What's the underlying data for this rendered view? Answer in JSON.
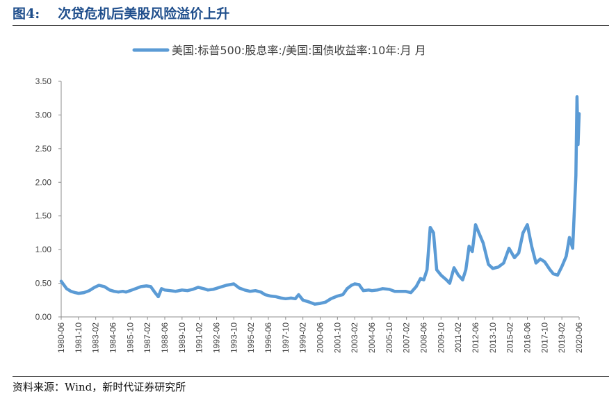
{
  "header": {
    "figure_number": "图4:",
    "title": "次贷危机后美股风险溢价上升"
  },
  "footer": {
    "source": "资料来源：Wind，新时代证券研究所"
  },
  "chart_data": {
    "type": "line",
    "title": "",
    "xlabel": "",
    "ylabel": "",
    "legend": "top-center",
    "grid": false,
    "ylim": [
      0,
      3.5
    ],
    "yticks": [
      "0.00",
      "0.50",
      "1.00",
      "1.50",
      "2.00",
      "2.50",
      "3.00",
      "3.50"
    ],
    "xticks": [
      "1980-06",
      "1981-10",
      "1983-02",
      "1984-06",
      "1985-10",
      "1987-02",
      "1988-06",
      "1989-10",
      "1991-02",
      "1992-06",
      "1993-10",
      "1995-02",
      "1996-06",
      "1997-10",
      "1999-02",
      "2000-06",
      "2001-10",
      "2003-02",
      "2004-06",
      "2005-10",
      "2007-02",
      "2008-06",
      "2009-10",
      "2011-02",
      "2012-06",
      "2013-10",
      "2015-02",
      "2016-06",
      "2017-10",
      "2019-02",
      "2020-06"
    ],
    "x_start": "1980-06",
    "x_end": "2020-06",
    "series": [
      {
        "name": "美国:标普500:股息率:/美国:国债收益率:10年:月 月",
        "color": "#5b9bd5",
        "points": [
          [
            "1980-06",
            0.53
          ],
          [
            "1980-11",
            0.42
          ],
          [
            "1981-03",
            0.38
          ],
          [
            "1981-07",
            0.36
          ],
          [
            "1981-10",
            0.35
          ],
          [
            "1982-03",
            0.36
          ],
          [
            "1982-08",
            0.39
          ],
          [
            "1983-01",
            0.44
          ],
          [
            "1983-05",
            0.47
          ],
          [
            "1983-10",
            0.45
          ],
          [
            "1984-03",
            0.4
          ],
          [
            "1984-07",
            0.38
          ],
          [
            "1984-11",
            0.37
          ],
          [
            "1985-03",
            0.38
          ],
          [
            "1985-06",
            0.37
          ],
          [
            "1985-10",
            0.39
          ],
          [
            "1986-03",
            0.42
          ],
          [
            "1986-08",
            0.45
          ],
          [
            "1987-01",
            0.46
          ],
          [
            "1987-05",
            0.45
          ],
          [
            "1987-09",
            0.36
          ],
          [
            "1987-12",
            0.3
          ],
          [
            "1988-03",
            0.42
          ],
          [
            "1988-06",
            0.4
          ],
          [
            "1988-11",
            0.39
          ],
          [
            "1989-04",
            0.38
          ],
          [
            "1989-10",
            0.4
          ],
          [
            "1990-03",
            0.39
          ],
          [
            "1990-08",
            0.41
          ],
          [
            "1991-01",
            0.44
          ],
          [
            "1991-06",
            0.42
          ],
          [
            "1991-10",
            0.4
          ],
          [
            "1992-03",
            0.41
          ],
          [
            "1992-09",
            0.44
          ],
          [
            "1993-03",
            0.47
          ],
          [
            "1993-10",
            0.49
          ],
          [
            "1994-03",
            0.43
          ],
          [
            "1994-08",
            0.4
          ],
          [
            "1995-01",
            0.38
          ],
          [
            "1995-06",
            0.39
          ],
          [
            "1995-11",
            0.37
          ],
          [
            "1996-03",
            0.33
          ],
          [
            "1996-08",
            0.31
          ],
          [
            "1997-01",
            0.3
          ],
          [
            "1997-06",
            0.28
          ],
          [
            "1997-10",
            0.27
          ],
          [
            "1998-03",
            0.28
          ],
          [
            "1998-07",
            0.27
          ],
          [
            "1998-10",
            0.33
          ],
          [
            "1999-02",
            0.25
          ],
          [
            "1999-08",
            0.22
          ],
          [
            "2000-01",
            0.19
          ],
          [
            "2000-06",
            0.2
          ],
          [
            "2000-11",
            0.22
          ],
          [
            "2001-04",
            0.27
          ],
          [
            "2001-10",
            0.31
          ],
          [
            "2002-03",
            0.33
          ],
          [
            "2002-07",
            0.42
          ],
          [
            "2002-11",
            0.47
          ],
          [
            "2003-02",
            0.49
          ],
          [
            "2003-06",
            0.48
          ],
          [
            "2003-10",
            0.39
          ],
          [
            "2004-03",
            0.4
          ],
          [
            "2004-06",
            0.39
          ],
          [
            "2004-11",
            0.4
          ],
          [
            "2005-04",
            0.42
          ],
          [
            "2005-10",
            0.41
          ],
          [
            "2006-03",
            0.38
          ],
          [
            "2006-08",
            0.38
          ],
          [
            "2007-01",
            0.38
          ],
          [
            "2007-06",
            0.36
          ],
          [
            "2007-11",
            0.45
          ],
          [
            "2008-03",
            0.57
          ],
          [
            "2008-06",
            0.55
          ],
          [
            "2008-09",
            0.7
          ],
          [
            "2008-12",
            1.33
          ],
          [
            "2009-03",
            1.25
          ],
          [
            "2009-06",
            0.7
          ],
          [
            "2009-10",
            0.62
          ],
          [
            "2010-03",
            0.55
          ],
          [
            "2010-06",
            0.5
          ],
          [
            "2010-10",
            0.73
          ],
          [
            "2011-02",
            0.62
          ],
          [
            "2011-06",
            0.55
          ],
          [
            "2011-09",
            0.7
          ],
          [
            "2011-12",
            1.05
          ],
          [
            "2012-03",
            0.97
          ],
          [
            "2012-06",
            1.37
          ],
          [
            "2012-09",
            1.25
          ],
          [
            "2013-01",
            1.1
          ],
          [
            "2013-06",
            0.78
          ],
          [
            "2013-10",
            0.72
          ],
          [
            "2014-03",
            0.74
          ],
          [
            "2014-08",
            0.8
          ],
          [
            "2015-01",
            1.02
          ],
          [
            "2015-06",
            0.88
          ],
          [
            "2015-10",
            0.95
          ],
          [
            "2016-02",
            1.25
          ],
          [
            "2016-06",
            1.37
          ],
          [
            "2016-10",
            1.05
          ],
          [
            "2017-02",
            0.8
          ],
          [
            "2017-06",
            0.86
          ],
          [
            "2017-10",
            0.82
          ],
          [
            "2018-03",
            0.7
          ],
          [
            "2018-06",
            0.64
          ],
          [
            "2018-10",
            0.62
          ],
          [
            "2019-02",
            0.75
          ],
          [
            "2019-06",
            0.9
          ],
          [
            "2019-09",
            1.18
          ],
          [
            "2019-12",
            1.02
          ],
          [
            "2020-03",
            2.1
          ],
          [
            "2020-04",
            3.27
          ],
          [
            "2020-05",
            2.56
          ],
          [
            "2020-06",
            3.02
          ]
        ]
      }
    ]
  }
}
